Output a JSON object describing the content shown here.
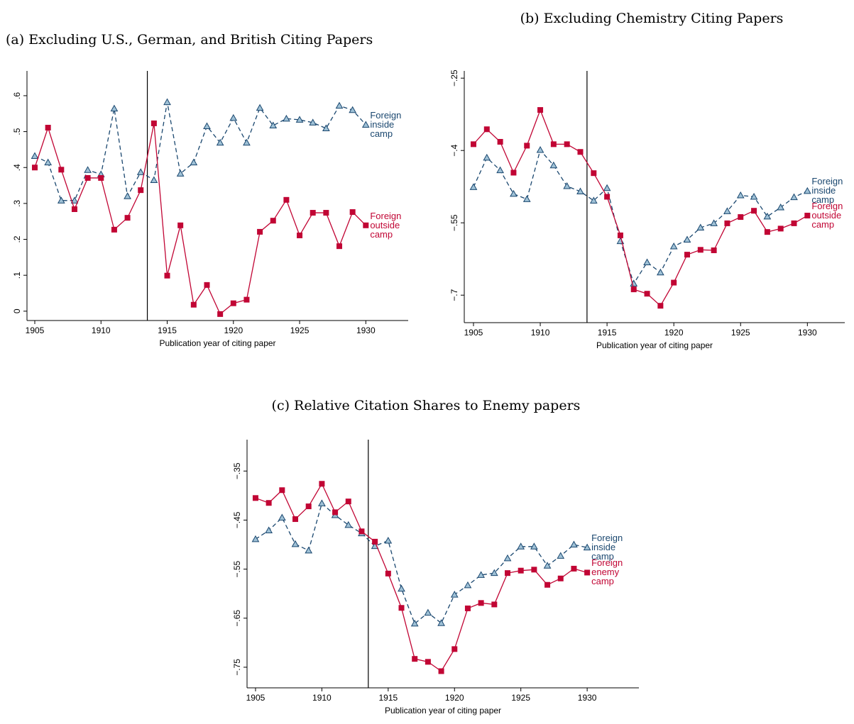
{
  "chart_data": [
    {
      "type": "line",
      "title": "(a) Excluding U.S., German, and British Citing Papers",
      "xlabel": "Publication year of citing paper",
      "x": [
        1905,
        1906,
        1907,
        1908,
        1909,
        1910,
        1911,
        1912,
        1913,
        1914,
        1915,
        1916,
        1917,
        1918,
        1919,
        1920,
        1921,
        1922,
        1923,
        1924,
        1925,
        1926,
        1927,
        1928,
        1929,
        1930
      ],
      "series": [
        {
          "name": "Foreign inside camp",
          "color": "#1a476f",
          "marker": "triangle",
          "dashed": true,
          "values": [
            0.432,
            0.414,
            0.308,
            0.308,
            0.393,
            0.381,
            0.564,
            0.32,
            0.387,
            0.365,
            0.582,
            0.383,
            0.414,
            0.515,
            0.469,
            0.538,
            0.469,
            0.566,
            0.517,
            0.536,
            0.533,
            0.525,
            0.509,
            0.572,
            0.56,
            0.519
          ]
        },
        {
          "name": "Foreign outside camp",
          "color": "#c10534",
          "marker": "square",
          "dashed": false,
          "values": [
            0.4,
            0.511,
            0.394,
            0.284,
            0.371,
            0.371,
            0.227,
            0.26,
            0.337,
            0.523,
            0.099,
            0.239,
            0.018,
            0.073,
            -0.008,
            0.022,
            0.032,
            0.221,
            0.252,
            0.31,
            0.211,
            0.274,
            0.274,
            0.181,
            0.276,
            0.239
          ]
        }
      ],
      "xlim": [
        1904.41,
        1933.2
      ],
      "xticks": [
        1905,
        1910,
        1915,
        1920,
        1925,
        1930
      ],
      "ylim": [
        -0.026,
        0.669
      ],
      "yticks": [
        0,
        {
          "value": 0.1,
          "label": ".1"
        },
        {
          "value": 0.2,
          "label": ".2"
        },
        {
          "value": 0.3,
          "label": ".3"
        },
        {
          "value": 0.4,
          "label": ".4"
        },
        {
          "value": 0.5,
          "label": ".5"
        },
        {
          "value": 0.6,
          "label": ".6"
        }
      ],
      "vline": 1913.5
    },
    {
      "type": "line",
      "title": "(b) Excluding Chemistry Citing Papers",
      "xlabel": "Publication year of citing paper",
      "x": [
        1905,
        1906,
        1907,
        1908,
        1909,
        1910,
        1911,
        1912,
        1913,
        1914,
        1915,
        1916,
        1917,
        1918,
        1919,
        1920,
        1921,
        1922,
        1923,
        1924,
        1925,
        1926,
        1927,
        1928,
        1929,
        1930
      ],
      "series": [
        {
          "name": "Foreign inside camp",
          "color": "#1a476f",
          "marker": "triangle",
          "dashed": true,
          "values": [
            -0.476,
            -0.415,
            -0.441,
            -0.49,
            -0.501,
            -0.399,
            -0.431,
            -0.474,
            -0.485,
            -0.504,
            -0.478,
            -0.588,
            -0.676,
            -0.632,
            -0.653,
            -0.599,
            -0.585,
            -0.56,
            -0.551,
            -0.526,
            -0.493,
            -0.496,
            -0.537,
            -0.518,
            -0.497,
            -0.484
          ]
        },
        {
          "name": "Foreign outside camp",
          "color": "#c10534",
          "marker": "square",
          "dashed": false,
          "values": [
            -0.387,
            -0.356,
            -0.382,
            -0.446,
            -0.39,
            -0.316,
            -0.387,
            -0.387,
            -0.403,
            -0.447,
            -0.496,
            -0.576,
            -0.688,
            -0.697,
            -0.722,
            -0.674,
            -0.616,
            -0.606,
            -0.607,
            -0.551,
            -0.538,
            -0.525,
            -0.569,
            -0.562,
            -0.551,
            -0.535
          ]
        }
      ],
      "xlim": [
        1904.31,
        1932.8
      ],
      "xticks": [
        1905,
        1910,
        1915,
        1920,
        1925,
        1930
      ],
      "ylim": [
        -0.757,
        -0.235
      ],
      "yticks": [
        {
          "value": -0.7,
          "label": "−.7"
        },
        {
          "value": -0.55,
          "label": "−.55"
        },
        {
          "value": -0.4,
          "label": "−.4"
        },
        {
          "value": -0.25,
          "label": "−.25"
        }
      ],
      "vline": 1913.5
    },
    {
      "type": "line",
      "title": "(c) Relative Citation Shares to Enemy papers",
      "xlabel": "Publication year of citing paper",
      "x": [
        1905,
        1906,
        1907,
        1908,
        1909,
        1910,
        1911,
        1912,
        1913,
        1914,
        1915,
        1916,
        1917,
        1918,
        1919,
        1920,
        1921,
        1922,
        1923,
        1924,
        1925,
        1926,
        1927,
        1928,
        1929,
        1930
      ],
      "series": [
        {
          "name": "Foreign inside camp",
          "color": "#1a476f",
          "marker": "triangle",
          "dashed": true,
          "values": [
            -0.489,
            -0.471,
            -0.445,
            -0.499,
            -0.512,
            -0.416,
            -0.44,
            -0.46,
            -0.477,
            -0.503,
            -0.492,
            -0.59,
            -0.661,
            -0.639,
            -0.66,
            -0.602,
            -0.583,
            -0.562,
            -0.558,
            -0.528,
            -0.504,
            -0.504,
            -0.543,
            -0.523,
            -0.5,
            -0.506
          ]
        },
        {
          "name": "Foreign enemy camp",
          "color": "#c10534",
          "marker": "square",
          "dashed": false,
          "values": [
            -0.405,
            -0.415,
            -0.389,
            -0.448,
            -0.422,
            -0.376,
            -0.434,
            -0.412,
            -0.473,
            -0.494,
            -0.559,
            -0.629,
            -0.733,
            -0.739,
            -0.758,
            -0.713,
            -0.63,
            -0.619,
            -0.622,
            -0.558,
            -0.553,
            -0.551,
            -0.582,
            -0.569,
            -0.549,
            -0.557
          ]
        }
      ],
      "xlim": [
        1904.36,
        1933.9
      ],
      "xticks": [
        1905,
        1910,
        1915,
        1920,
        1925,
        1930
      ],
      "ylim": [
        -0.792,
        -0.286
      ],
      "yticks": [
        {
          "value": -0.75,
          "label": "−.75"
        },
        {
          "value": -0.65,
          "label": "−.65"
        },
        {
          "value": -0.55,
          "label": "−.55"
        },
        {
          "value": -0.45,
          "label": "−.45"
        },
        {
          "value": -0.35,
          "label": "−.35"
        }
      ],
      "vline": 1913.5
    }
  ]
}
